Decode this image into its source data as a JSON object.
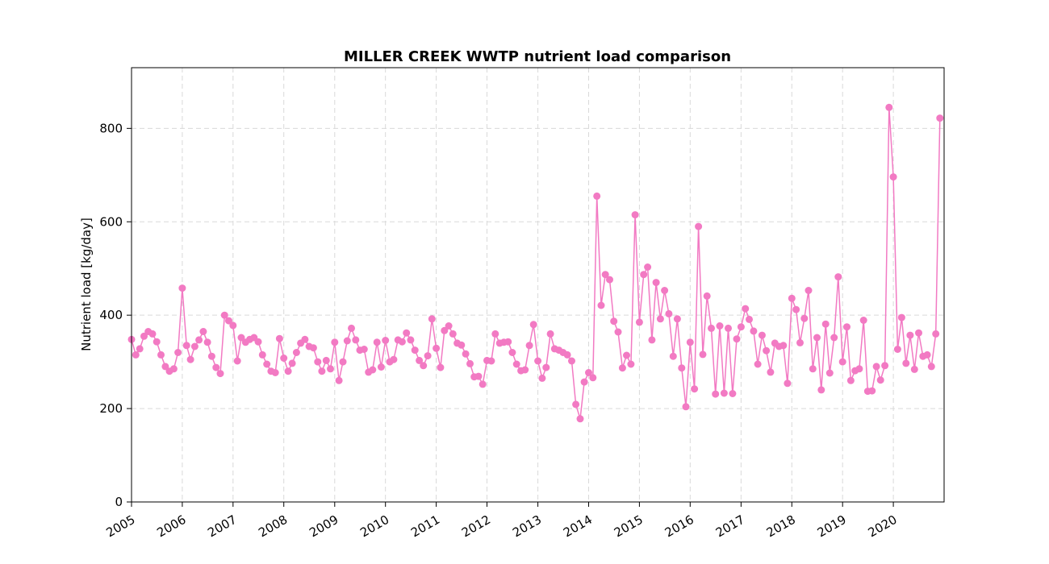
{
  "chart_data": {
    "type": "line",
    "title": "MILLER CREEK WWTP nutrient load comparison",
    "xlabel": "",
    "ylabel": "Nutrient load [kg/day]",
    "xlim": [
      "2005-01-01",
      "2020-12-31"
    ],
    "ylim": [
      0,
      930
    ],
    "yticks": [
      0,
      200,
      400,
      600,
      800
    ],
    "xticks": [
      "2005",
      "2006",
      "2007",
      "2008",
      "2009",
      "2010",
      "2011",
      "2012",
      "2013",
      "2014",
      "2015",
      "2016",
      "2017",
      "2018",
      "2019",
      "2020"
    ],
    "grid": true,
    "marker": "circle",
    "series": [
      {
        "name": "",
        "color": "#f27ac3",
        "x": [
          "2005-01",
          "2005-02",
          "2005-03",
          "2005-04",
          "2005-05",
          "2005-06",
          "2005-07",
          "2005-08",
          "2005-09",
          "2005-10",
          "2005-11",
          "2005-12",
          "2006-01",
          "2006-02",
          "2006-03",
          "2006-04",
          "2006-05",
          "2006-06",
          "2006-07",
          "2006-08",
          "2006-09",
          "2006-10",
          "2006-11",
          "2006-12",
          "2007-01",
          "2007-02",
          "2007-03",
          "2007-04",
          "2007-05",
          "2007-06",
          "2007-07",
          "2007-08",
          "2007-09",
          "2007-10",
          "2007-11",
          "2007-12",
          "2008-01",
          "2008-02",
          "2008-03",
          "2008-04",
          "2008-05",
          "2008-06",
          "2008-07",
          "2008-08",
          "2008-09",
          "2008-10",
          "2008-11",
          "2008-12",
          "2009-01",
          "2009-02",
          "2009-03",
          "2009-04",
          "2009-05",
          "2009-06",
          "2009-07",
          "2009-08",
          "2009-09",
          "2009-10",
          "2009-11",
          "2009-12",
          "2010-01",
          "2010-02",
          "2010-03",
          "2010-04",
          "2010-05",
          "2010-06",
          "2010-07",
          "2010-08",
          "2010-09",
          "2010-10",
          "2010-11",
          "2010-12",
          "2011-01",
          "2011-02",
          "2011-03",
          "2011-04",
          "2011-05",
          "2011-06",
          "2011-07",
          "2011-08",
          "2011-09",
          "2011-10",
          "2011-11",
          "2011-12",
          "2012-01",
          "2012-02",
          "2012-03",
          "2012-04",
          "2012-05",
          "2012-06",
          "2012-07",
          "2012-08",
          "2012-09",
          "2012-10",
          "2012-11",
          "2012-12",
          "2013-01",
          "2013-02",
          "2013-03",
          "2013-04",
          "2013-05",
          "2013-06",
          "2013-07",
          "2013-08",
          "2013-09",
          "2013-10",
          "2013-11",
          "2013-12",
          "2014-01",
          "2014-02",
          "2014-03",
          "2014-04",
          "2014-05",
          "2014-06",
          "2014-07",
          "2014-08",
          "2014-09",
          "2014-10",
          "2014-11",
          "2014-12",
          "2015-01",
          "2015-02",
          "2015-03",
          "2015-04",
          "2015-05",
          "2015-06",
          "2015-07",
          "2015-08",
          "2015-09",
          "2015-10",
          "2015-11",
          "2015-12",
          "2016-01",
          "2016-02",
          "2016-03",
          "2016-04",
          "2016-05",
          "2016-06",
          "2016-07",
          "2016-08",
          "2016-09",
          "2016-10",
          "2016-11",
          "2016-12",
          "2017-01",
          "2017-02",
          "2017-03",
          "2017-04",
          "2017-05",
          "2017-06",
          "2017-07",
          "2017-08",
          "2017-09",
          "2017-10",
          "2017-11",
          "2017-12",
          "2018-01",
          "2018-02",
          "2018-03",
          "2018-04",
          "2018-05",
          "2018-06",
          "2018-07",
          "2018-08",
          "2018-09",
          "2018-10",
          "2018-11",
          "2018-12",
          "2019-01",
          "2019-02",
          "2019-03",
          "2019-04",
          "2019-05",
          "2019-06",
          "2019-07",
          "2019-08",
          "2019-09",
          "2019-10",
          "2019-11",
          "2019-12",
          "2020-01",
          "2020-02",
          "2020-03",
          "2020-04",
          "2020-05",
          "2020-06",
          "2020-07",
          "2020-08",
          "2020-09",
          "2020-10",
          "2020-11",
          "2020-12"
        ],
        "y": [
          348,
          315,
          328,
          355,
          365,
          360,
          343,
          315,
          290,
          280,
          285,
          320,
          458,
          335,
          305,
          333,
          347,
          365,
          342,
          312,
          288,
          275,
          400,
          388,
          378,
          302,
          352,
          342,
          348,
          352,
          343,
          315,
          295,
          280,
          277,
          350,
          308,
          280,
          297,
          320,
          340,
          348,
          333,
          330,
          300,
          280,
          303,
          285,
          342,
          260,
          300,
          345,
          372,
          347,
          325,
          327,
          278,
          283,
          342,
          289,
          346,
          300,
          305,
          347,
          343,
          362,
          347,
          325,
          303,
          292,
          313,
          392,
          329,
          288,
          367,
          377,
          360,
          340,
          336,
          317,
          296,
          268,
          269,
          252,
          303,
          302,
          360,
          340,
          342,
          343,
          320,
          295,
          281,
          283,
          335,
          380,
          302,
          265,
          288,
          360,
          328,
          325,
          320,
          315,
          302,
          209,
          178,
          257,
          277,
          266,
          655,
          421,
          487,
          476,
          387,
          364,
          287,
          314,
          295,
          615,
          385,
          487,
          503,
          347,
          470,
          392,
          453,
          403,
          312,
          392,
          287,
          204,
          342,
          242,
          590,
          316,
          441,
          372,
          231,
          377,
          233,
          372,
          232,
          349,
          375,
          414,
          391,
          366,
          295,
          357,
          324,
          278,
          340,
          333,
          335,
          254,
          436,
          412,
          341,
          393,
          453,
          285,
          352,
          240,
          381,
          276,
          352,
          482,
          300,
          375,
          260,
          281,
          285,
          389,
          237,
          238,
          290,
          261,
          292,
          845,
          696,
          327,
          395,
          297,
          357,
          284,
          362,
          312,
          315,
          290,
          360,
          822
        ]
      }
    ]
  }
}
